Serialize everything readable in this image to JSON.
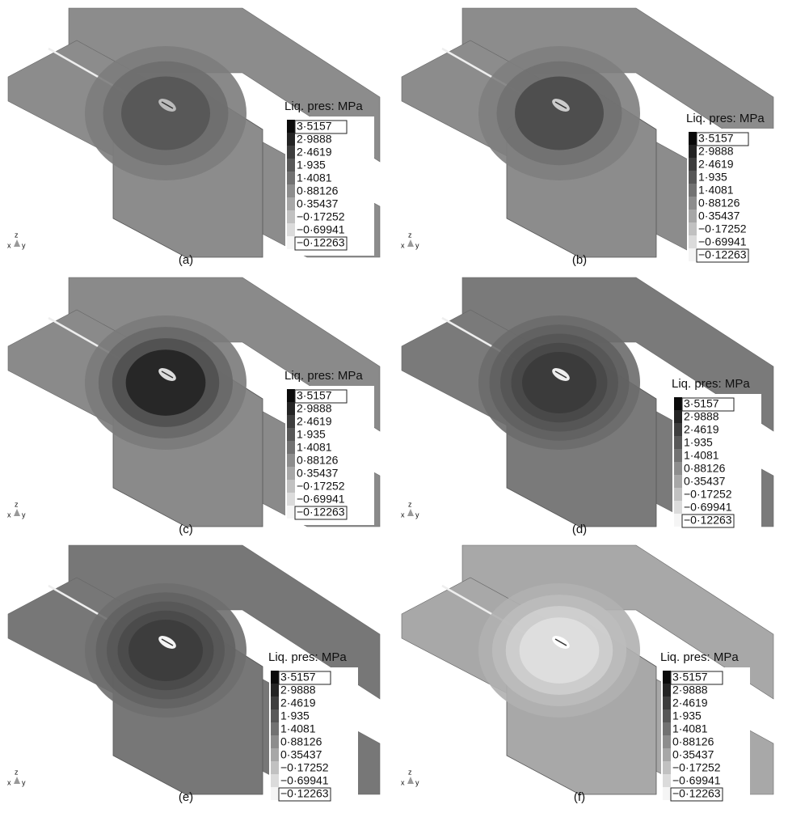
{
  "panels": [
    {
      "label": "(a)",
      "legend": {
        "title": "Liq. pres: MPa",
        "levels": [
          "3·5157",
          "2·9888",
          "2·4619",
          "1·935",
          "1·4081",
          "0·88126",
          "0·35437",
          "−0·17252",
          "−0·69941",
          "−0·12263"
        ]
      },
      "triad": {
        "z": "z",
        "x": "x",
        "y": "y"
      }
    },
    {
      "label": "(b)",
      "legend": {
        "title": "Liq. pres: MPa",
        "levels": [
          "3·5157",
          "2·9888",
          "2·4619",
          "1·935",
          "1·4081",
          "0·88126",
          "0·35437",
          "−0·17252",
          "−0·69941",
          "−0·12263"
        ]
      },
      "triad": {
        "z": "z",
        "x": "x",
        "y": "y"
      }
    },
    {
      "label": "(c)",
      "legend": {
        "title": "Liq. pres: MPa",
        "levels": [
          "3·5157",
          "2·9888",
          "2·4619",
          "1·935",
          "1·4081",
          "0·88126",
          "0·35437",
          "−0·17252",
          "−0·69941",
          "−0·12263"
        ]
      },
      "triad": {
        "z": "z",
        "x": "x",
        "y": "y"
      }
    },
    {
      "label": "(d)",
      "legend": {
        "title": "Liq. pres: MPa",
        "levels": [
          "3·5157",
          "2·9888",
          "2·4619",
          "1·935",
          "1·4081",
          "0·88126",
          "0·35437",
          "−0·17252",
          "−0·69941",
          "−0·12263"
        ]
      },
      "triad": {
        "z": "z",
        "x": "x",
        "y": "y"
      }
    },
    {
      "label": "(e)",
      "legend": {
        "title": "Liq. pres: MPa",
        "levels": [
          "3·5157",
          "2·9888",
          "2·4619",
          "1·935",
          "1·4081",
          "0·88126",
          "0·35437",
          "−0·17252",
          "−0·69941",
          "−0·12263"
        ]
      },
      "triad": {
        "z": "z",
        "x": "x",
        "y": "y"
      }
    },
    {
      "label": "(f)",
      "legend": {
        "title": "Liq. pres: MPa",
        "levels": [
          "3·5157",
          "2·9888",
          "2·4619",
          "1·935",
          "1·4081",
          "0·88126",
          "0·35437",
          "−0·17252",
          "−0·69941",
          "−0·12263"
        ]
      },
      "triad": {
        "z": "z",
        "x": "x",
        "y": "y"
      }
    }
  ]
}
